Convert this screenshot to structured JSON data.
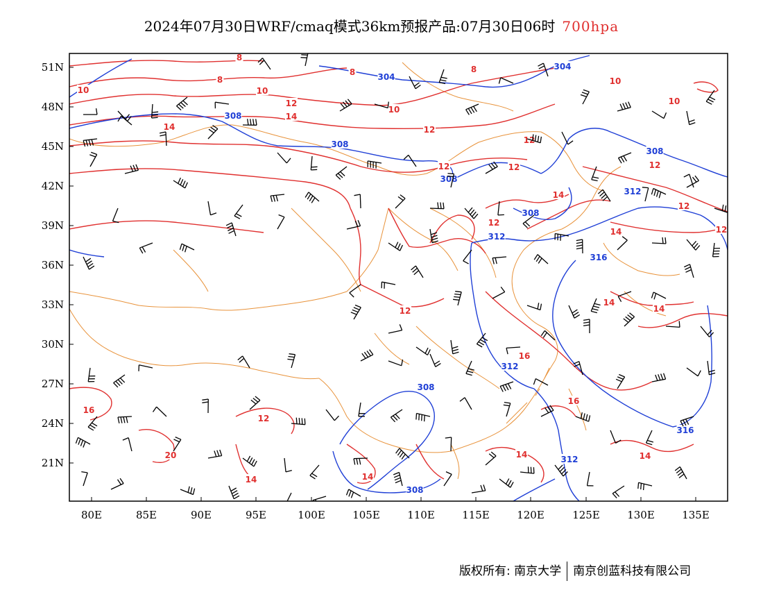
{
  "title": {
    "main": "2024年07月30日WRF/cmaq模式36km预报产品:07月30日06时",
    "level": "700hpa"
  },
  "colors": {
    "temperature": "#e0302f",
    "geopotential": "#1f3fd6",
    "boundary": "#e8923a",
    "frame": "#000000"
  },
  "axes": {
    "lat_labels": [
      "51N",
      "48N",
      "45N",
      "42N",
      "39N",
      "36N",
      "33N",
      "30N",
      "27N",
      "24N",
      "21N"
    ],
    "lon_labels": [
      "80E",
      "85E",
      "90E",
      "95E",
      "100E",
      "105E",
      "110E",
      "115E",
      "120E",
      "125E",
      "130E",
      "135E"
    ]
  },
  "footer": {
    "left": "版权所有: 南京大学",
    "right": "南京创蓝科技有限公司"
  },
  "contours": {
    "temperature_labels": [
      "8",
      "8",
      "8",
      "8",
      "10",
      "10",
      "10",
      "10",
      "10",
      "12",
      "12",
      "12",
      "12",
      "12",
      "12",
      "12",
      "12",
      "12",
      "12",
      "12",
      "14",
      "14",
      "14",
      "14",
      "14",
      "14",
      "14",
      "14",
      "14",
      "14",
      "16",
      "16",
      "16",
      "20"
    ],
    "geopotential_labels": [
      "304",
      "304",
      "308",
      "308",
      "308",
      "308",
      "308",
      "308",
      "308",
      "312",
      "312",
      "312",
      "312",
      "316",
      "316"
    ]
  }
}
